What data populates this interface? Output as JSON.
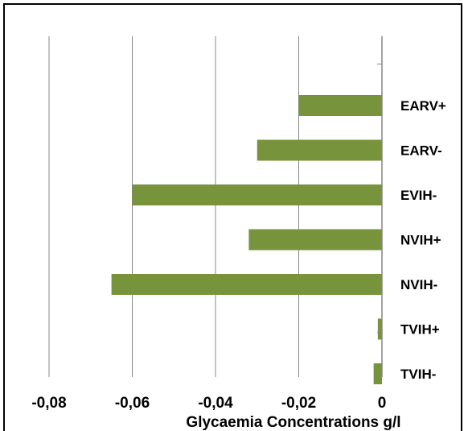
{
  "chart_data": {
    "type": "bar",
    "orientation": "horizontal",
    "categories": [
      "EARV+",
      "EARV-",
      "EVIH-",
      "NVIH+",
      "NVIH-",
      "TVIH+",
      "TVIH-"
    ],
    "values": [
      -0.02,
      -0.03,
      -0.06,
      -0.032,
      -0.065,
      -0.001,
      -0.002
    ],
    "xlim": [
      -0.08,
      0
    ],
    "xticks": [
      -0.08,
      -0.06,
      -0.04,
      -0.02,
      0
    ],
    "xtick_labels": [
      "-0,08",
      "-0,06",
      "-0,04",
      "-0,02",
      "0"
    ],
    "xlabel": "Glycaemia  Concentrations g/l",
    "title": "",
    "ylabel": "",
    "grid": "vertical",
    "bar_color": "#77933c",
    "gridline_color": "#868686"
  }
}
